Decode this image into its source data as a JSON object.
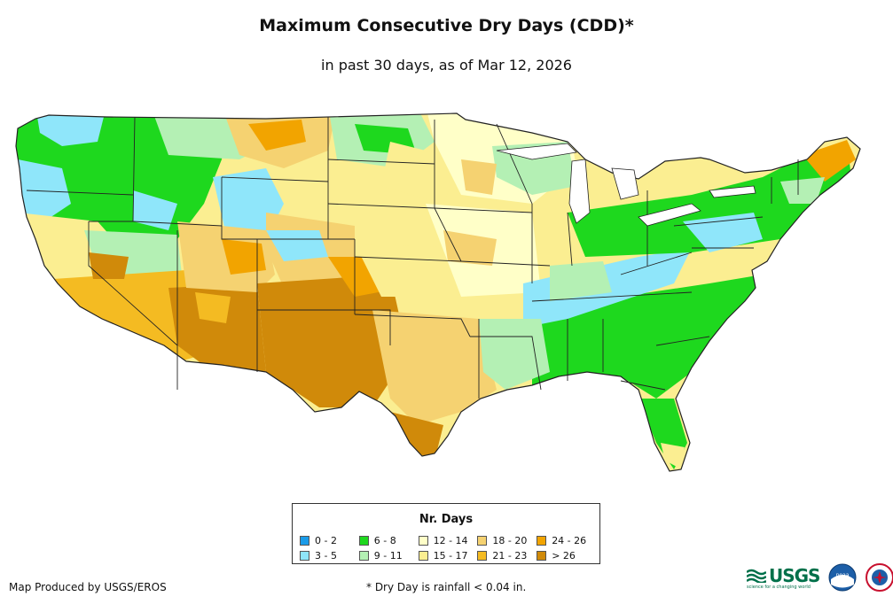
{
  "title": "Maximum Consecutive Dry Days (CDD)*",
  "subtitle": "in past 30 days, as of Mar 12, 2026",
  "legend": {
    "title": "Nr. Days",
    "items": [
      {
        "label": "0 - 2",
        "color": "#1a9be8"
      },
      {
        "label": "6 - 8",
        "color": "#1ed81e"
      },
      {
        "label": "12 - 14",
        "color": "#ffffc8"
      },
      {
        "label": "18 - 20",
        "color": "#f5d271"
      },
      {
        "label": "24 - 26",
        "color": "#f2a400"
      },
      {
        "label": "3 - 5",
        "color": "#8fe6fa"
      },
      {
        "label": "9 - 11",
        "color": "#b4f0b4"
      },
      {
        "label": "15 - 17",
        "color": "#fbee91"
      },
      {
        "label": "21 - 23",
        "color": "#f4bb22"
      },
      {
        "label": "> 26",
        "color": "#d08a0a"
      }
    ]
  },
  "credit": "Map Produced by USGS/EROS",
  "footnote": "* Dry Day is rainfall < 0.04 in.",
  "logos": {
    "usgs_text": "USGS",
    "usgs_tagline": "science for a changing world",
    "noaa_seal": "noaa",
    "nws_seal": "NATIONAL WEATHER SERVICE"
  },
  "colors": {
    "state_border": "#222222",
    "background": "#ffffff"
  }
}
